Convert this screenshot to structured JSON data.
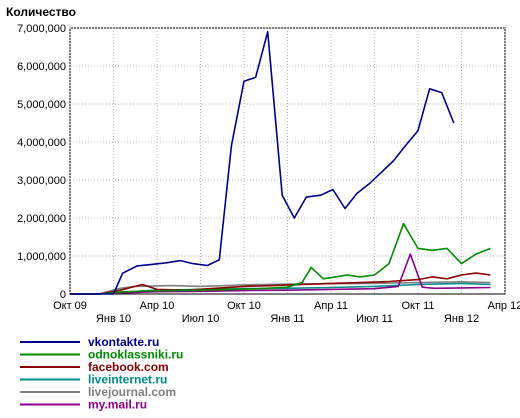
{
  "chart_data": {
    "type": "line",
    "ylabel": "Количество",
    "xlabel": "",
    "ylim": [
      0,
      7000000
    ],
    "yticks": [
      {
        "value": 0,
        "label": "0"
      },
      {
        "value": 1000000,
        "label": "1,000,000"
      },
      {
        "value": 2000000,
        "label": "2,000,000"
      },
      {
        "value": 3000000,
        "label": "3,000,000"
      },
      {
        "value": 4000000,
        "label": "4,000,000"
      },
      {
        "value": 5000000,
        "label": "5,000,000"
      },
      {
        "value": 6000000,
        "label": "6,000,000"
      },
      {
        "value": 7000000,
        "label": "7,000,000"
      }
    ],
    "x": [
      "2009-10",
      "2009-11",
      "2009-12",
      "2010-01",
      "2010-02",
      "2010-03",
      "2010-04",
      "2010-05",
      "2010-06",
      "2010-07",
      "2010-08",
      "2010-09",
      "2010-10",
      "2010-11",
      "2010-12",
      "2011-01",
      "2011-02",
      "2011-03",
      "2011-04",
      "2011-05",
      "2011-06",
      "2011-07",
      "2011-08",
      "2011-09",
      "2011-10",
      "2011-11",
      "2011-12",
      "2012-01",
      "2012-02",
      "2012-03",
      "2012-04"
    ],
    "xticks": [
      {
        "x": "2009-10",
        "label": "Окт 09",
        "row": 0
      },
      {
        "x": "2010-01",
        "label": "Янв 10",
        "row": 1
      },
      {
        "x": "2010-04",
        "label": "Апр 10",
        "row": 0
      },
      {
        "x": "2010-07",
        "label": "Июл 10",
        "row": 1
      },
      {
        "x": "2010-10",
        "label": "Окт 10",
        "row": 0
      },
      {
        "x": "2011-01",
        "label": "Янв 11",
        "row": 1
      },
      {
        "x": "2011-04",
        "label": "Апр 11",
        "row": 0
      },
      {
        "x": "2011-07",
        "label": "Июл 11",
        "row": 1
      },
      {
        "x": "2011-10",
        "label": "Окт 11",
        "row": 0
      },
      {
        "x": "2012-01",
        "label": "Янв 12",
        "row": 1
      },
      {
        "x": "2012-04",
        "label": "Апр 12",
        "row": 0
      }
    ],
    "grid": true,
    "legend_position": "bottom-left",
    "series": [
      {
        "name": "vkontakte.ru",
        "color": "#00008b",
        "points": [
          [
            "2009-10",
            0
          ],
          [
            "2009-11",
            0
          ],
          [
            "2009-12",
            0
          ],
          [
            "2010-01",
            0
          ],
          [
            "2010-01-20",
            550000
          ],
          [
            "2010-02-20",
            740000
          ],
          [
            "2010-03-20",
            780000
          ],
          [
            "2010-04-20",
            820000
          ],
          [
            "2010-05-20",
            880000
          ],
          [
            "2010-06-15",
            800000
          ],
          [
            "2010-07-15",
            750000
          ],
          [
            "2010-08-10",
            900000
          ],
          [
            "2010-09-05",
            3900000
          ],
          [
            "2010-10-01",
            5600000
          ],
          [
            "2010-10-25",
            5700000
          ],
          [
            "2010-11-20",
            6900000
          ],
          [
            "2010-12-20",
            2600000
          ],
          [
            "2011-01-15",
            2000000
          ],
          [
            "2011-02-10",
            2550000
          ],
          [
            "2011-03-10",
            2600000
          ],
          [
            "2011-04-05",
            2750000
          ],
          [
            "2011-04-30",
            2250000
          ],
          [
            "2011-05-25",
            2650000
          ],
          [
            "2011-06-20",
            2900000
          ],
          [
            "2011-07-15",
            3200000
          ],
          [
            "2011-08-10",
            3500000
          ],
          [
            "2011-09-05",
            3900000
          ],
          [
            "2011-10-01",
            4300000
          ],
          [
            "2011-10-25",
            5400000
          ],
          [
            "2011-11-20",
            5300000
          ],
          [
            "2011-12-15",
            4500000
          ]
        ]
      },
      {
        "name": "odnoklassniki.ru",
        "color": "#008b00",
        "points": [
          [
            "2009-10",
            0
          ],
          [
            "2009-12",
            0
          ],
          [
            "2010-01-15",
            50000
          ],
          [
            "2010-03",
            80000
          ],
          [
            "2010-05",
            90000
          ],
          [
            "2010-07",
            100000
          ],
          [
            "2010-09",
            120000
          ],
          [
            "2010-11",
            140000
          ],
          [
            "2011-01",
            180000
          ],
          [
            "2011-02",
            300000
          ],
          [
            "2011-02-20",
            700000
          ],
          [
            "2011-03-15",
            400000
          ],
          [
            "2011-04-10",
            450000
          ],
          [
            "2011-05-05",
            500000
          ],
          [
            "2011-06",
            450000
          ],
          [
            "2011-07",
            500000
          ],
          [
            "2011-08",
            800000
          ],
          [
            "2011-09",
            1850000
          ],
          [
            "2011-10",
            1200000
          ],
          [
            "2011-11",
            1150000
          ],
          [
            "2011-12",
            1200000
          ],
          [
            "2012-01",
            800000
          ],
          [
            "2012-02",
            1050000
          ],
          [
            "2012-03",
            1200000
          ]
        ]
      },
      {
        "name": "facebook.com",
        "color": "#8b0000",
        "points": [
          [
            "2009-10",
            0
          ],
          [
            "2009-12",
            0
          ],
          [
            "2010-01-15",
            100000
          ],
          [
            "2010-03",
            250000
          ],
          [
            "2010-04",
            120000
          ],
          [
            "2010-06",
            100000
          ],
          [
            "2010-08",
            150000
          ],
          [
            "2010-10",
            200000
          ],
          [
            "2010-12",
            220000
          ],
          [
            "2011-02",
            250000
          ],
          [
            "2011-04",
            280000
          ],
          [
            "2011-06",
            300000
          ],
          [
            "2011-08",
            330000
          ],
          [
            "2011-10",
            380000
          ],
          [
            "2011-11",
            450000
          ],
          [
            "2011-12",
            400000
          ],
          [
            "2012-01",
            500000
          ],
          [
            "2012-02",
            550000
          ],
          [
            "2012-03",
            500000
          ]
        ]
      },
      {
        "name": "liveinternet.ru",
        "color": "#008b8b",
        "points": [
          [
            "2009-10",
            0
          ],
          [
            "2009-12",
            0
          ],
          [
            "2010-01-15",
            50000
          ],
          [
            "2010-04",
            100000
          ],
          [
            "2010-07",
            120000
          ],
          [
            "2010-10",
            140000
          ],
          [
            "2011-01",
            150000
          ],
          [
            "2011-04",
            170000
          ],
          [
            "2011-07",
            200000
          ],
          [
            "2011-10",
            250000
          ],
          [
            "2012-01",
            280000
          ],
          [
            "2012-03",
            250000
          ]
        ]
      },
      {
        "name": "livejournal.com",
        "color": "#808080",
        "points": [
          [
            "2009-10",
            0
          ],
          [
            "2009-12",
            0
          ],
          [
            "2010-01-15",
            150000
          ],
          [
            "2010-02-15",
            200000
          ],
          [
            "2010-05",
            220000
          ],
          [
            "2010-07",
            200000
          ],
          [
            "2010-10",
            240000
          ],
          [
            "2011-01",
            260000
          ],
          [
            "2011-04",
            270000
          ],
          [
            "2011-07",
            280000
          ],
          [
            "2011-10",
            300000
          ],
          [
            "2012-01",
            320000
          ],
          [
            "2012-03",
            300000
          ]
        ]
      },
      {
        "name": "my.mail.ru",
        "color": "#8b008b",
        "points": [
          [
            "2009-10",
            0
          ],
          [
            "2009-12",
            0
          ],
          [
            "2010-01-15",
            30000
          ],
          [
            "2010-04",
            60000
          ],
          [
            "2010-07",
            70000
          ],
          [
            "2010-10",
            90000
          ],
          [
            "2011-01",
            100000
          ],
          [
            "2011-04",
            120000
          ],
          [
            "2011-07",
            140000
          ],
          [
            "2011-08-20",
            200000
          ],
          [
            "2011-09-15",
            1050000
          ],
          [
            "2011-10-10",
            180000
          ],
          [
            "2011-11-05",
            150000
          ],
          [
            "2012-01",
            160000
          ],
          [
            "2012-03",
            170000
          ]
        ]
      }
    ]
  }
}
